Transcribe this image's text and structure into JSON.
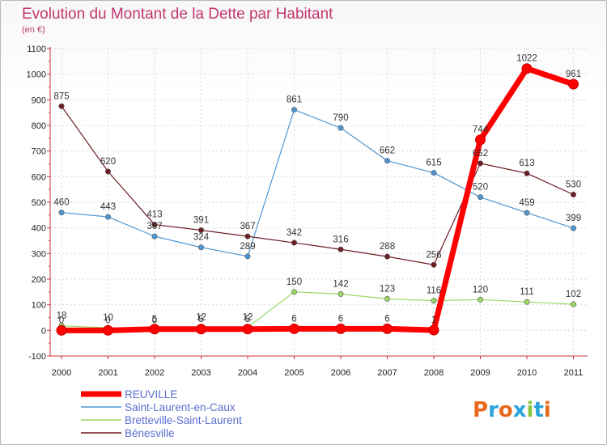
{
  "chart_data": {
    "type": "line",
    "title": "Evolution du Montant de la Dette par Habitant",
    "subtitle": "(en €)",
    "xlabel": "",
    "ylabel": "",
    "x": [
      "2000",
      "2001",
      "2002",
      "2003",
      "2004",
      "2005",
      "2006",
      "2007",
      "2008",
      "2009",
      "2010",
      "2011"
    ],
    "ylim": [
      -100,
      1100
    ],
    "yticks": [
      -100,
      0,
      100,
      200,
      300,
      400,
      500,
      600,
      700,
      800,
      900,
      1000,
      1100
    ],
    "grid": true,
    "legend_position": "bottom-left",
    "series": [
      {
        "name": "REUVILLE",
        "color": "#ff0000",
        "values": [
          0,
          0,
          5,
          5,
          5,
          6,
          6,
          6,
          1,
          744,
          1022,
          961
        ],
        "labels": [
          "0",
          "0",
          "5",
          "5",
          "5",
          "6",
          "6",
          "6",
          "1",
          "744",
          "1022",
          "961"
        ]
      },
      {
        "name": "Saint-Laurent-en-Caux",
        "color": "#4f96d2",
        "values": [
          460,
          443,
          367,
          324,
          289,
          861,
          790,
          662,
          615,
          520,
          459,
          399
        ],
        "labels": [
          "460",
          "443",
          "367",
          "324",
          "289",
          "861",
          "790",
          "662",
          "615",
          "520",
          "459",
          "399"
        ]
      },
      {
        "name": "Bretteville-Saint-Laurent",
        "color": "#9ad964",
        "values": [
          18,
          10,
          0,
          12,
          12,
          150,
          142,
          123,
          116,
          120,
          111,
          102
        ],
        "labels": [
          "18",
          "10",
          "0",
          "12",
          "12",
          "150",
          "142",
          "123",
          "116",
          "120",
          "111",
          "102"
        ]
      },
      {
        "name": "Bénesville",
        "color": "#6e1c24",
        "values": [
          875,
          620,
          413,
          391,
          367,
          342,
          316,
          288,
          256,
          652,
          613,
          530
        ],
        "labels": [
          "875",
          "620",
          "413",
          "391",
          "367",
          "342",
          "316",
          "288",
          "256",
          "652",
          "613",
          "530"
        ]
      }
    ]
  },
  "branding": {
    "logo_text": "Proxiti",
    "letter_colors": [
      "#e8681c",
      "#2aa3de",
      "#e8681c",
      "#2aa3de",
      "#8bc53f",
      "#2aa3de",
      "#e8681c"
    ]
  }
}
